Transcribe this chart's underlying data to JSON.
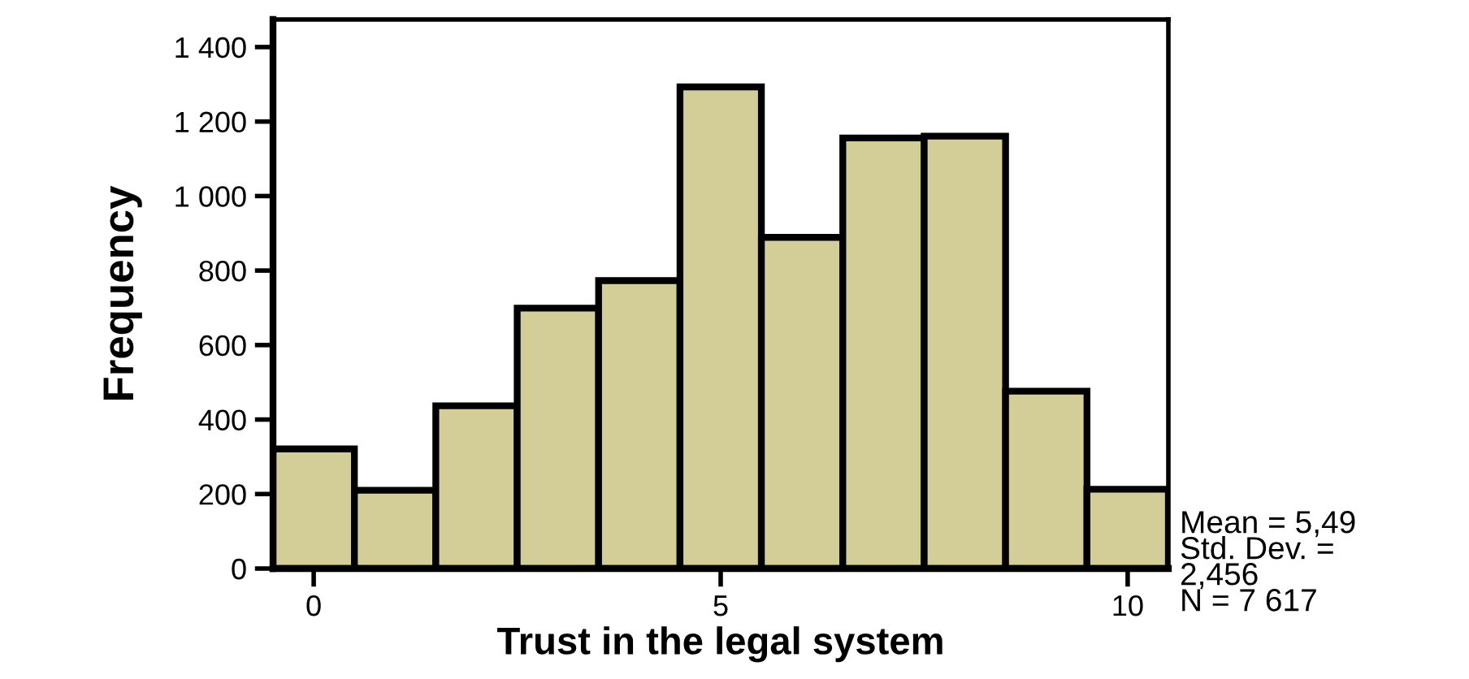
{
  "chart_data": {
    "type": "histogram",
    "xlabel": "Trust in the legal system",
    "ylabel": "Frequency",
    "bins": [
      -0.5,
      0.5,
      1.5,
      2.5,
      3.5,
      4.5,
      5.5,
      6.5,
      7.5,
      8.5,
      9.5,
      10.5
    ],
    "values": [
      321,
      210,
      437,
      699,
      773,
      1293,
      889,
      1156,
      1161,
      476,
      213
    ],
    "color": "#d3ce98",
    "xlim": [
      -0.5,
      10.5
    ],
    "xticks": [
      0,
      5,
      10
    ],
    "ylim": [
      0,
      1474
    ],
    "yticks": [
      0,
      {
        "value": 200,
        "label": "200"
      },
      {
        "value": 400,
        "label": "400"
      },
      {
        "value": 600,
        "label": "600"
      },
      {
        "value": 800,
        "label": "800"
      },
      {
        "value": 1000,
        "label": "1 000"
      },
      {
        "value": 1200,
        "label": "1 200"
      },
      {
        "value": 1400,
        "label": "1 400"
      }
    ],
    "grid": false,
    "annotations": [
      "Mean = 5,49\nStd. Dev. =\n2,456\nN = 7 617"
    ]
  }
}
